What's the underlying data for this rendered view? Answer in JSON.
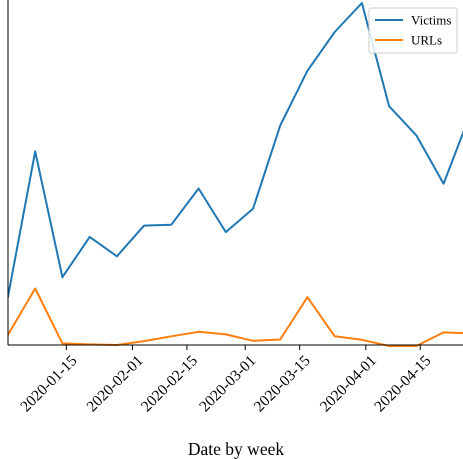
{
  "chart_data": {
    "type": "line",
    "title": "",
    "xlabel": "Date by week",
    "ylabel": "",
    "x_ticks": [
      "2020-01-15",
      "2020-02-01",
      "2020-02-15",
      "2020-03-01",
      "2020-03-15",
      "2020-04-01",
      "2020-04-15"
    ],
    "x": [
      "2019-12-31",
      "2020-01-07",
      "2020-01-14",
      "2020-01-21",
      "2020-01-28",
      "2020-02-04",
      "2020-02-11",
      "2020-02-18",
      "2020-02-25",
      "2020-03-03",
      "2020-03-10",
      "2020-03-17",
      "2020-03-24",
      "2020-03-31",
      "2020-04-07",
      "2020-04-14",
      "2020-04-21",
      "2020-04-28"
    ],
    "xlim": [
      "2019-12-31",
      "2020-04-26"
    ],
    "y_ticks_visible": false,
    "grid": false,
    "legend": "top-right",
    "series": [
      {
        "name": "Victims",
        "color": "#1f77b4",
        "values": [
          0.15,
          0.6,
          0.21,
          0.335,
          0.275,
          0.37,
          0.373,
          0.485,
          0.35,
          0.422,
          0.68,
          0.85,
          0.97,
          1.06,
          0.74,
          0.65,
          0.5,
          0.72
        ]
      },
      {
        "name": "URLs",
        "color": "#ff7f0e",
        "values": [
          0.032,
          0.175,
          0.005,
          0.002,
          0.0,
          0.012,
          0.027,
          0.041,
          0.033,
          0.013,
          0.017,
          0.148,
          0.027,
          0.016,
          -0.003,
          -0.003,
          0.039,
          0.036
        ]
      }
    ]
  }
}
